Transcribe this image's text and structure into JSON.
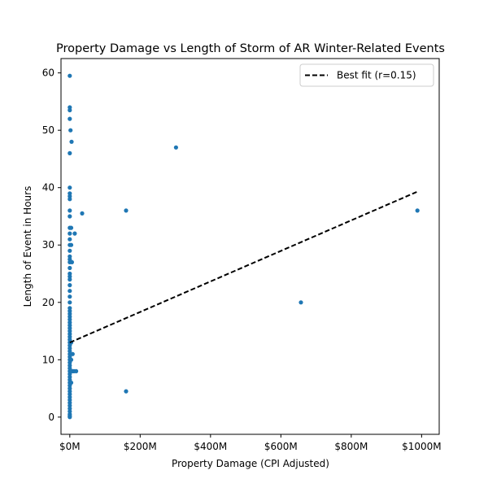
{
  "chart_data": {
    "type": "scatter",
    "title": "Property Damage vs Length of Storm of AR Winter-Related Events",
    "xlabel": "Property Damage (CPI Adjusted)",
    "ylabel": "Length of Event in Hours",
    "xlim": [
      -25,
      1050
    ],
    "ylim": [
      -3,
      62.5
    ],
    "x_unit": "millions of USD",
    "xticks": [
      0,
      200,
      400,
      600,
      800,
      1000
    ],
    "xtick_labels": [
      "$0M",
      "$200M",
      "$400M",
      "$600M",
      "$800M",
      "$1000M"
    ],
    "yticks": [
      0,
      10,
      20,
      30,
      40,
      50,
      60
    ],
    "ytick_labels": [
      "0",
      "10",
      "20",
      "30",
      "40",
      "50",
      "60"
    ],
    "grid": false,
    "legend": {
      "position": "top-right",
      "entries": [
        "Best fit (r=0.15)"
      ]
    },
    "colors": {
      "points": "#1f77b4",
      "fit_line": "#000000"
    },
    "series": [
      {
        "values_xy": [
          [
            0,
            59.5
          ],
          [
            0,
            54
          ],
          [
            0,
            53.5
          ],
          [
            0,
            52
          ],
          [
            2,
            50
          ],
          [
            5,
            48
          ],
          [
            0,
            46
          ],
          [
            0,
            40
          ],
          [
            0,
            39
          ],
          [
            0,
            38.5
          ],
          [
            0,
            38
          ],
          [
            0,
            36
          ],
          [
            0,
            35
          ],
          [
            35,
            35.5
          ],
          [
            0,
            33
          ],
          [
            4,
            33
          ],
          [
            0,
            32
          ],
          [
            14,
            32
          ],
          [
            0,
            31
          ],
          [
            0,
            30
          ],
          [
            4,
            30
          ],
          [
            0,
            29
          ],
          [
            0,
            28
          ],
          [
            0,
            27.5
          ],
          [
            0,
            27
          ],
          [
            6,
            27
          ],
          [
            0,
            26
          ],
          [
            0,
            25
          ],
          [
            0,
            24.5
          ],
          [
            0,
            24
          ],
          [
            0,
            23
          ],
          [
            0,
            22
          ],
          [
            0,
            21
          ],
          [
            0,
            20
          ],
          [
            0,
            19
          ],
          [
            0,
            18.5
          ],
          [
            0,
            18
          ],
          [
            0,
            17.5
          ],
          [
            0,
            17
          ],
          [
            0,
            16.5
          ],
          [
            0,
            16
          ],
          [
            0,
            15.5
          ],
          [
            0,
            15
          ],
          [
            0,
            14.5
          ],
          [
            0,
            14
          ],
          [
            0,
            13.5
          ],
          [
            0,
            13
          ],
          [
            4,
            13
          ],
          [
            0,
            12.5
          ],
          [
            0,
            12
          ],
          [
            0,
            11.5
          ],
          [
            0,
            11
          ],
          [
            8,
            11
          ],
          [
            0,
            10.5
          ],
          [
            0,
            10
          ],
          [
            4,
            10
          ],
          [
            0,
            9.5
          ],
          [
            0,
            9
          ],
          [
            0,
            8.5
          ],
          [
            0,
            8
          ],
          [
            4,
            8
          ],
          [
            8,
            8
          ],
          [
            12,
            8
          ],
          [
            18,
            8
          ],
          [
            0,
            7.5
          ],
          [
            0,
            7
          ],
          [
            0,
            6.5
          ],
          [
            0,
            6
          ],
          [
            4,
            6
          ],
          [
            0,
            5.5
          ],
          [
            0,
            5
          ],
          [
            0,
            4.5
          ],
          [
            0,
            4
          ],
          [
            0,
            3.5
          ],
          [
            0,
            3
          ],
          [
            0,
            2.5
          ],
          [
            0,
            2
          ],
          [
            0,
            1.5
          ],
          [
            0,
            1
          ],
          [
            0,
            0.5
          ],
          [
            0,
            0.2
          ],
          [
            0,
            0
          ],
          [
            160,
            36
          ],
          [
            302,
            47
          ],
          [
            160,
            4.5
          ],
          [
            657,
            20
          ],
          [
            988,
            36
          ]
        ]
      }
    ],
    "fit_line": {
      "label": "Best fit (r=0.15)",
      "x": [
        0,
        988
      ],
      "y": [
        13,
        39.3
      ]
    }
  }
}
